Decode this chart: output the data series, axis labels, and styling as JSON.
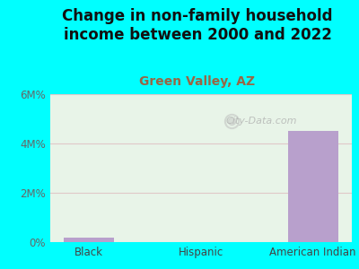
{
  "title": "Change in non-family household\nincome between 2000 and 2022",
  "subtitle": "Green Valley, AZ",
  "categories": [
    "Black",
    "Hispanic",
    "American Indian"
  ],
  "values": [
    0.18,
    0.0,
    4.5
  ],
  "bar_color": "#b8a0cc",
  "title_fontsize": 12,
  "subtitle_fontsize": 10,
  "subtitle_color": "#996644",
  "title_color": "#111111",
  "background_color": "#00ffff",
  "plot_bg_color": "#e8f4e8",
  "ylim": [
    0,
    6
  ],
  "yticks": [
    0,
    2,
    4,
    6
  ],
  "ytick_labels": [
    "0%",
    "2M%",
    "4M%",
    "6M%"
  ],
  "watermark": "City-Data.com",
  "gridline_color": "#e0c8c8",
  "tick_label_color": "#666666",
  "xtick_label_color": "#444444"
}
